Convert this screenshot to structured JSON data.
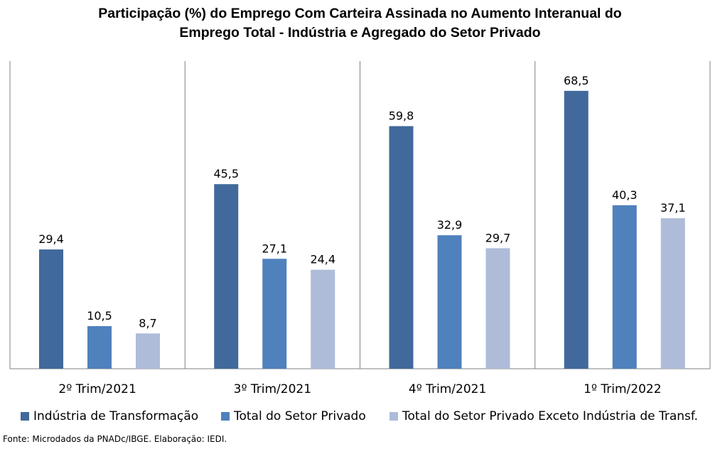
{
  "chart_data": {
    "type": "bar",
    "title_line1": "Participação (%) do Emprego Com Carteira Assinada no Aumento Interanual do",
    "title_line2": "Emprego Total - Indústria e Agregado do Setor Privado",
    "categories": [
      "2º Trim/2021",
      "3º Trim/2021",
      "4º Trim/2021",
      "1º Trim/2022"
    ],
    "series": [
      {
        "name": "Indústria de Transformação",
        "color": "#41699B",
        "values": [
          29.4,
          45.5,
          59.8,
          68.5
        ],
        "labels": [
          "29,4",
          "45,5",
          "59,8",
          "68,5"
        ]
      },
      {
        "name": "Total do Setor Privado",
        "color": "#4F81BD",
        "values": [
          10.5,
          27.1,
          32.9,
          40.3
        ],
        "labels": [
          "10,5",
          "27,1",
          "32,9",
          "40,3"
        ]
      },
      {
        "name": "Total do Setor Privado Exceto Indústria de Transf.",
        "color": "#AEBCD9",
        "values": [
          8.7,
          24.4,
          29.7,
          37.1
        ],
        "labels": [
          "8,7",
          "24,4",
          "29,7",
          "37,1"
        ]
      }
    ],
    "ylim": [
      0,
      75
    ],
    "legend_position": "bottom",
    "grid": false
  },
  "footer": {
    "source": "Fonte: Microdados da PNADc/IBGE. Elaboração: IEDI."
  }
}
